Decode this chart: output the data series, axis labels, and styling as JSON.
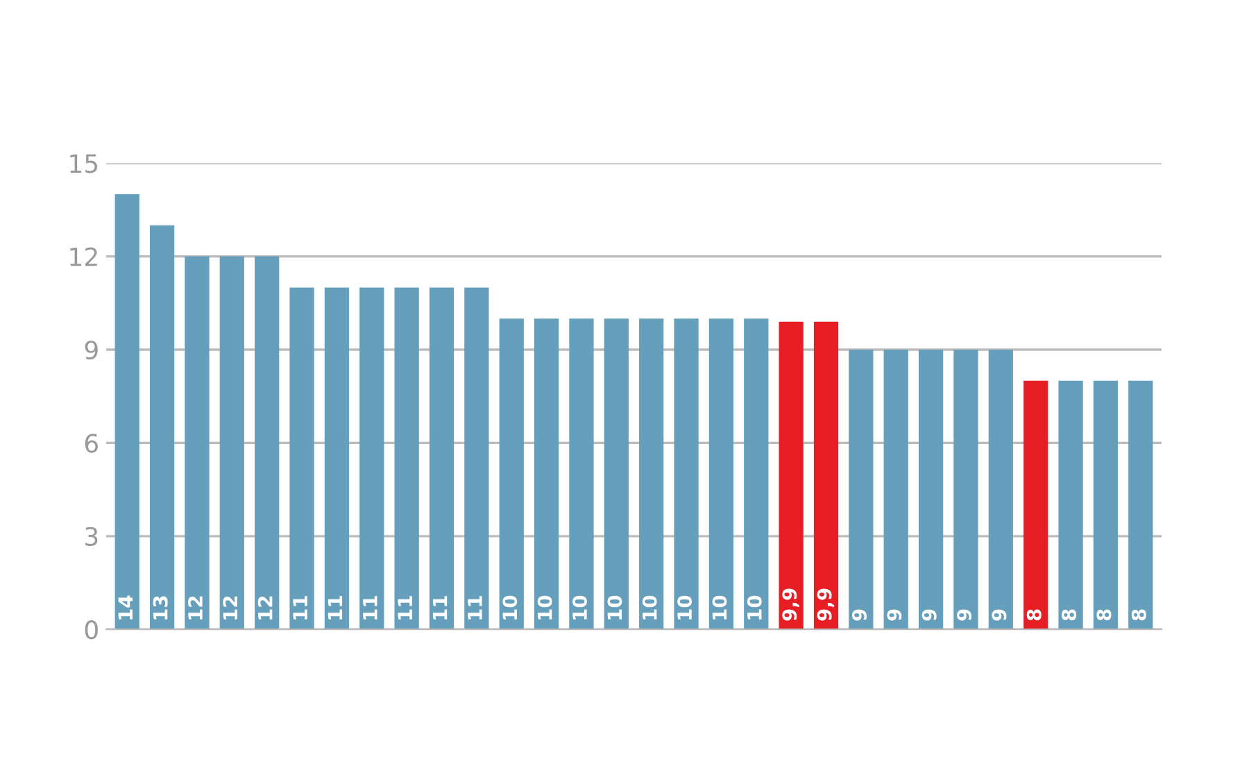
{
  "chart_data": {
    "type": "bar",
    "categories": [
      null,
      null,
      null,
      null,
      null,
      null,
      null,
      null,
      null,
      null,
      null,
      null,
      null,
      null,
      null,
      null,
      null,
      null,
      null,
      null,
      null,
      null,
      null,
      null,
      null,
      null,
      null,
      null,
      null,
      null
    ],
    "values": [
      14,
      13,
      12,
      12,
      12,
      11,
      11,
      11,
      11,
      11,
      11,
      10,
      10,
      10,
      10,
      10,
      10,
      10,
      10,
      9.9,
      9.9,
      9,
      9,
      9,
      9,
      9,
      8,
      8,
      8,
      8
    ],
    "value_labels": [
      "14",
      "13",
      "12",
      "12",
      "12",
      "11",
      "11",
      "11",
      "11",
      "11",
      "11",
      "10",
      "10",
      "10",
      "10",
      "10",
      "10",
      "10",
      "10",
      "9,9",
      "9,9",
      "9",
      "9",
      "9",
      "9",
      "9",
      "8",
      "8",
      "8",
      "8"
    ],
    "colors": [
      "#659fbb",
      "#659fbb",
      "#659fbb",
      "#659fbb",
      "#659fbb",
      "#659fbb",
      "#659fbb",
      "#659fbb",
      "#659fbb",
      "#659fbb",
      "#659fbb",
      "#659fbb",
      "#659fbb",
      "#659fbb",
      "#659fbb",
      "#659fbb",
      "#659fbb",
      "#659fbb",
      "#659fbb",
      "#e81e25",
      "#e81e25",
      "#659fbb",
      "#659fbb",
      "#659fbb",
      "#659fbb",
      "#659fbb",
      "#e81e25",
      "#659fbb",
      "#659fbb",
      "#659fbb"
    ],
    "ylim": [
      0,
      15
    ],
    "yticks": [
      0,
      3,
      6,
      9,
      12,
      15
    ],
    "grid": "y",
    "tick_labels": "y"
  }
}
